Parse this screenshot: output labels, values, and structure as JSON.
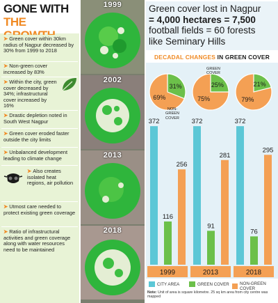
{
  "headline": {
    "line1": "GONE WITH",
    "line2": "THE GROWTH"
  },
  "bullets": [
    {
      "text": "Green cover within 30km radius of Nagpur decreased by 30% from 1999 to 2018"
    },
    {
      "text": "Non-green cover increased by 83%"
    },
    {
      "text": "Within the city, green cover decreased by 34%; infrastructural cover increased by 16%"
    },
    {
      "text": "Drastic depletion noted in South West Nagpur"
    },
    {
      "text": "Green cover eroded faster outside the city limits"
    },
    {
      "text": "Unbalanced development leading to climate change"
    },
    {
      "text": "Also creates isolated heat regions, air pollution"
    },
    {
      "text": "Utmost care needed to protect existing green coverage"
    },
    {
      "text": "Ratio of infrastructural activities and green coverage along with water resources need to be maintained"
    }
  ],
  "satellite_years": [
    "1999",
    "2002",
    "2013",
    "2018"
  ],
  "title": {
    "line1": "Green cover lost in Nagpur",
    "line2": "= 4,000 hectares = 7,500",
    "line3": "football fields = 60 forests",
    "line4": "like Seminary Hills"
  },
  "chart_heading": {
    "part1": "DECADAL CHANGES",
    "part2": " IN GREEN COVER"
  },
  "pie_annotations": {
    "non_green": "NON-GREEN COVER",
    "green": "GREEN COVER"
  },
  "colors": {
    "city_area": "#5cc7d6",
    "green_cover": "#6cc04a",
    "non_green_cover": "#f4a054",
    "accent": "#f08a24"
  },
  "chart_data": {
    "type": "bar",
    "categories": [
      "1999",
      "2013",
      "2018"
    ],
    "series": [
      {
        "name": "CITY AREA",
        "values": [
          372,
          372,
          372
        ]
      },
      {
        "name": "GREEN COVER",
        "values": [
          116,
          91,
          76
        ]
      },
      {
        "name": "NON-GREEN COVER",
        "values": [
          256,
          281,
          295
        ]
      }
    ],
    "pies": [
      {
        "category": "1999",
        "green_pct": 31,
        "non_green_pct": 69,
        "labels": [
          "31%",
          "69%"
        ]
      },
      {
        "category": "2013",
        "green_pct": 25,
        "non_green_pct": 75,
        "labels": [
          "25%",
          "75%"
        ]
      },
      {
        "category": "2018",
        "green_pct": 21,
        "non_green_pct": 79,
        "labels": [
          "21%",
          "79%"
        ]
      }
    ],
    "ylim": [
      0,
      400
    ]
  },
  "legend": [
    "CITY AREA",
    "GREEN COVER",
    "NON-GREEN COVER"
  ],
  "note": {
    "label": "Note:",
    "text": " Unit of area is square kilometre. 25 sq km area from city centre was mapped"
  }
}
